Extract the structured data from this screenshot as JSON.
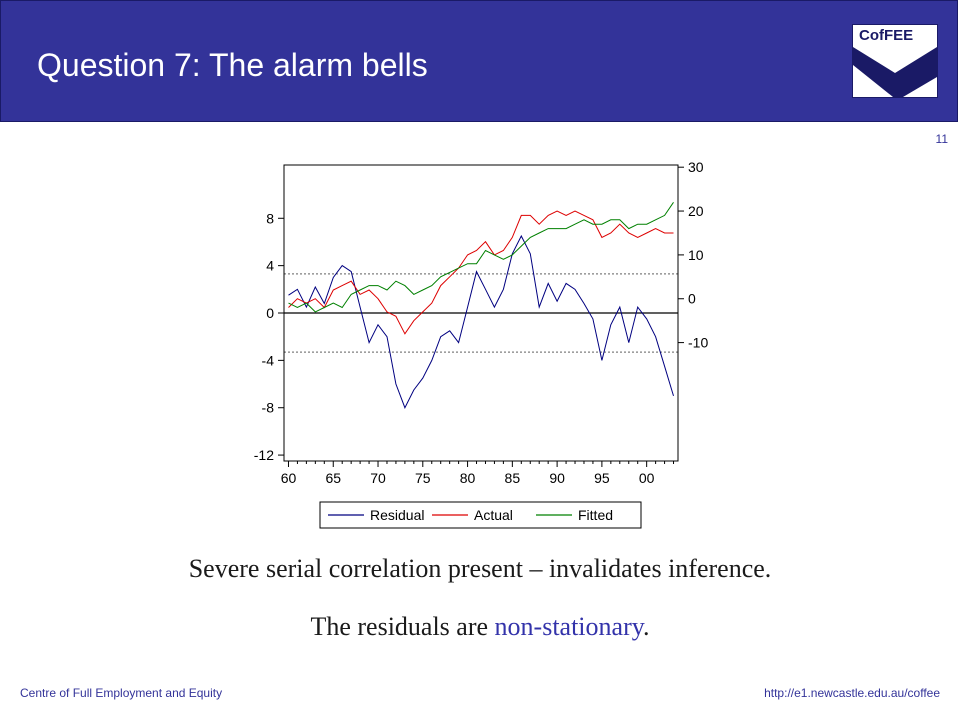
{
  "header": {
    "title": "Question 7: The alarm bells",
    "logo_text": "CofFEE"
  },
  "page_number": "11",
  "captions": {
    "line1": "Severe serial correlation present – invalidates inference.",
    "line2_prefix": "The residuals are ",
    "line2_highlight": "non-stationary",
    "line2_suffix": "."
  },
  "footer": {
    "left": "Centre of Full Employment and Equity",
    "right": "http://e1.newcastle.edu.au/coffee"
  },
  "colors": {
    "header_bg": "#333399",
    "residual": "#000080",
    "actual": "#dd0000",
    "fitted": "#008000",
    "highlight": "#3333aa"
  },
  "chart_data": {
    "type": "line",
    "x_ticks": [
      "60",
      "65",
      "70",
      "75",
      "80",
      "85",
      "90",
      "95",
      "00"
    ],
    "x_range": [
      1959.5,
      2003.5
    ],
    "left_axis": {
      "ticks": [
        8,
        4,
        0,
        -4,
        -8,
        -12
      ],
      "range": [
        -12.5,
        12.5
      ],
      "series": [
        "Residual"
      ],
      "ref_lines": [
        0,
        3.3,
        -3.3
      ]
    },
    "right_axis": {
      "ticks": [
        30,
        20,
        10,
        0,
        -10
      ],
      "range": [
        -37,
        30.5
      ],
      "series": [
        "Actual",
        "Fitted"
      ]
    },
    "legend": [
      "Residual",
      "Actual",
      "Fitted"
    ],
    "legend_position": "bottom",
    "series": [
      {
        "name": "Residual",
        "axis": "left",
        "x": [
          1960,
          1961,
          1962,
          1963,
          1964,
          1965,
          1966,
          1967,
          1968,
          1969,
          1970,
          1971,
          1972,
          1973,
          1974,
          1975,
          1976,
          1977,
          1978,
          1979,
          1980,
          1981,
          1982,
          1983,
          1984,
          1985,
          1986,
          1987,
          1988,
          1989,
          1990,
          1991,
          1992,
          1993,
          1994,
          1995,
          1996,
          1997,
          1998,
          1999,
          2000,
          2001,
          2002,
          2003
        ],
        "values": [
          1.5,
          2.0,
          0.5,
          2.2,
          0.8,
          3.0,
          4.0,
          3.5,
          0.5,
          -2.5,
          -1.0,
          -2.0,
          -6.0,
          -8.0,
          -6.5,
          -5.5,
          -4.0,
          -2.0,
          -1.5,
          -2.5,
          0.5,
          3.5,
          2.0,
          0.5,
          2.0,
          5.0,
          6.5,
          5.0,
          0.5,
          2.5,
          1.0,
          2.5,
          2.0,
          0.8,
          -0.5,
          -4.0,
          -1.0,
          0.5,
          -2.5,
          0.5,
          -0.5,
          -2.0,
          -4.5,
          -7.0
        ]
      },
      {
        "name": "Actual",
        "axis": "right",
        "x": [
          1960,
          1961,
          1962,
          1963,
          1964,
          1965,
          1966,
          1967,
          1968,
          1969,
          1970,
          1971,
          1972,
          1973,
          1974,
          1975,
          1976,
          1977,
          1978,
          1979,
          1980,
          1981,
          1982,
          1983,
          1984,
          1985,
          1986,
          1987,
          1988,
          1989,
          1990,
          1991,
          1992,
          1993,
          1994,
          1995,
          1996,
          1997,
          1998,
          1999,
          2000,
          2001,
          2002,
          2003
        ],
        "values": [
          -2,
          0,
          -1,
          0,
          -2,
          2,
          3,
          4,
          1,
          2,
          0,
          -3,
          -4,
          -8,
          -5,
          -3,
          -1,
          3,
          5,
          7,
          10,
          11,
          13,
          10,
          11,
          14,
          19,
          19,
          17,
          19,
          20,
          19,
          20,
          19,
          18,
          14,
          15,
          17,
          15,
          14,
          15,
          16,
          15,
          15
        ]
      },
      {
        "name": "Fitted",
        "axis": "right",
        "x": [
          1960,
          1961,
          1962,
          1963,
          1964,
          1965,
          1966,
          1967,
          1968,
          1969,
          1970,
          1971,
          1972,
          1973,
          1974,
          1975,
          1976,
          1977,
          1978,
          1979,
          1980,
          1981,
          1982,
          1983,
          1984,
          1985,
          1986,
          1987,
          1988,
          1989,
          1990,
          1991,
          1992,
          1993,
          1994,
          1995,
          1996,
          1997,
          1998,
          1999,
          2000,
          2001,
          2002,
          2003
        ],
        "values": [
          -1,
          -2,
          -1,
          -3,
          -2,
          -1,
          -2,
          1,
          2,
          3,
          3,
          2,
          4,
          3,
          1,
          2,
          3,
          5,
          6,
          7,
          8,
          8,
          11,
          10,
          9,
          10,
          12,
          14,
          15,
          16,
          16,
          16,
          17,
          18,
          17,
          17,
          18,
          18,
          16,
          17,
          17,
          18,
          19,
          22
        ]
      }
    ]
  }
}
